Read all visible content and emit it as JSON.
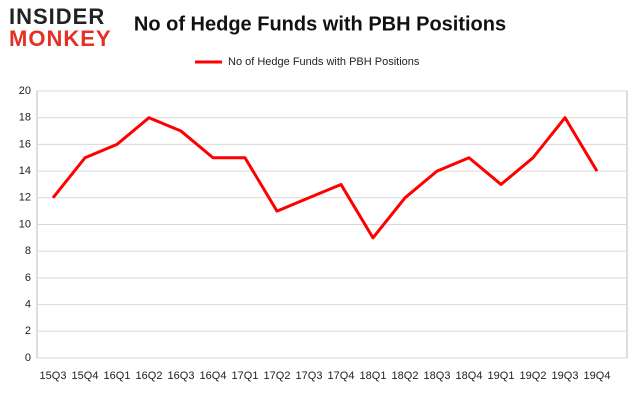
{
  "logo": {
    "line1": "INSIDER",
    "line2": "MONKEY"
  },
  "chart_data": {
    "type": "line",
    "title": "No of Hedge Funds with PBH Positions",
    "categories": [
      "15Q3",
      "15Q4",
      "16Q1",
      "16Q2",
      "16Q3",
      "16Q4",
      "17Q1",
      "17Q2",
      "17Q3",
      "17Q4",
      "18Q1",
      "18Q2",
      "18Q3",
      "18Q4",
      "19Q1",
      "19Q2",
      "19Q3",
      "19Q4"
    ],
    "series": [
      {
        "name": "No of Hedge Funds with PBH Positions",
        "color": "#ff0000",
        "values": [
          12,
          15,
          16,
          18,
          17,
          15,
          15,
          11,
          12,
          13,
          9,
          12,
          14,
          15,
          13,
          15,
          18,
          14
        ]
      }
    ],
    "ylim": [
      0,
      20
    ],
    "yticks": [
      0,
      2,
      4,
      6,
      8,
      10,
      12,
      14,
      16,
      18,
      20
    ],
    "grid": true,
    "legend": "top"
  }
}
